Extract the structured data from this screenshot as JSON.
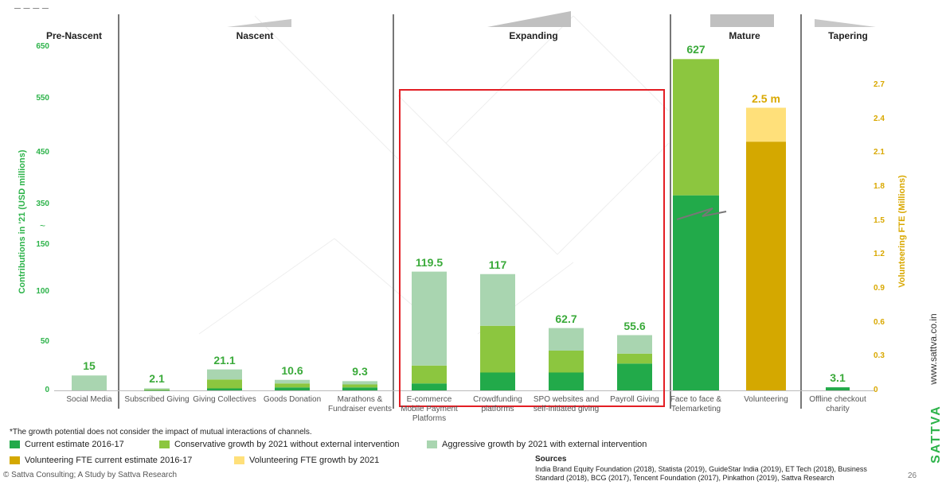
{
  "stages": [
    "Pre-Nascent",
    "Nascent",
    "Expanding",
    "Mature",
    "Tapering"
  ],
  "left_axis": {
    "label": "Contributions in '21 (USD millions)",
    "ticks_upper": [
      "650",
      "550",
      "450",
      "350"
    ],
    "ticks_lower": [
      "150",
      "100",
      "50",
      "0"
    ]
  },
  "right_axis": {
    "label": "Volunteering FTE (Millions)",
    "ticks": [
      "2.7",
      "2.4",
      "2.1",
      "1.8",
      "1.5",
      "1.2",
      "0.9",
      "0.6",
      "0.3",
      "0"
    ]
  },
  "colors": {
    "current": "#22aa4a",
    "conservative": "#8cc63f",
    "aggressive": "#a9d5b0",
    "vol_current": "#d4a800",
    "vol_growth": "#ffe07a",
    "highlight": "#e31e24",
    "divider": "#777777",
    "sattva": "#2db34a"
  },
  "chart_data": {
    "type": "bar",
    "stacked": true,
    "categories": [
      "Social Media",
      "Subscribed Giving",
      "Giving Collectives",
      "Goods Donation",
      "Marathons & Fundraiser events",
      "E-commerce Mobile Payment Platforms",
      "Crowdfunding platforms",
      "SPO websites and self-initiated giving",
      "Payroll Giving",
      "Face to face & Telemarketing",
      "Volunteering",
      "Offline checkout charity"
    ],
    "series": [
      {
        "name": "Current estimate 2016-17",
        "values": [
          0,
          0.5,
          2,
          3,
          3,
          7,
          18,
          18,
          27,
          370,
          null,
          3.1
        ]
      },
      {
        "name": "Conservative growth by 2021 without external intervention",
        "values": [
          0,
          0.5,
          9,
          4,
          3,
          18,
          47,
          22,
          10,
          257,
          null,
          0
        ]
      },
      {
        "name": "Aggressive growth by 2021 with external intervention",
        "values": [
          15,
          1.1,
          10.1,
          3.6,
          3.3,
          94.5,
          52,
          22.7,
          18.6,
          0,
          null,
          0
        ]
      },
      {
        "name": "Volunteering FTE current estimate 2016-17",
        "values": [
          null,
          null,
          null,
          null,
          null,
          null,
          null,
          null,
          null,
          null,
          2.2,
          null
        ]
      },
      {
        "name": "Volunteering FTE growth by 2021",
        "values": [
          null,
          null,
          null,
          null,
          null,
          null,
          null,
          null,
          null,
          null,
          0.3,
          null
        ]
      }
    ],
    "totals": [
      "15",
      "2.1",
      "21.1",
      "10.6",
      "9.3",
      "119.5",
      "117",
      "62.7",
      "55.6",
      "627",
      "2.5 m",
      "3.1"
    ],
    "ylim": [
      0,
      650
    ],
    "y2lim": [
      0,
      2.7
    ],
    "stages": [
      {
        "name": "Pre-Nascent",
        "categories": 1
      },
      {
        "name": "Nascent",
        "categories": 4
      },
      {
        "name": "Expanding",
        "categories": 4
      },
      {
        "name": "Mature",
        "categories": 2
      },
      {
        "name": "Tapering",
        "categories": 1
      }
    ]
  },
  "notes": {
    "footnote": "*The growth potential does not consider the impact of mutual interactions of channels.",
    "copyright": "© Sattva Consulting; A Study by Sattva Research",
    "sources_title": "Sources",
    "sources_line1": "India Brand Equity Foundation (2018), Statista (2019), GuideStar India (2019), ET Tech (2018), Business",
    "sources_line2": "Standard (2018), BCG (2017), Tencent Foundation (2017), Pinkathon (2019), Sattva Research",
    "page_number": "26",
    "site": "www.sattva.co.in",
    "brand": "SATTVA"
  }
}
